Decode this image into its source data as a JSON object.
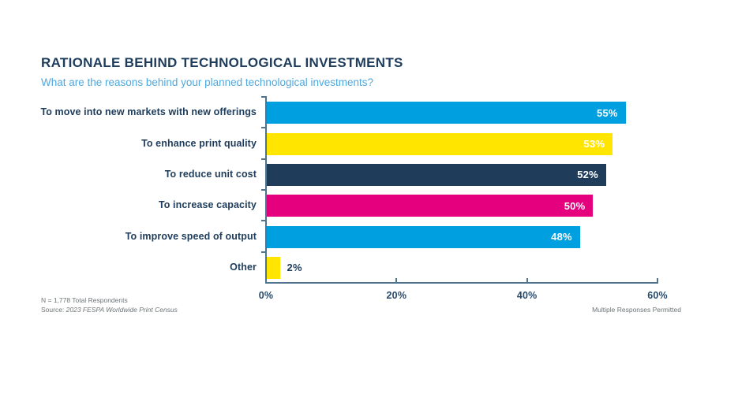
{
  "header": {
    "title": "RATIONALE BEHIND TECHNOLOGICAL INVESTMENTS",
    "subtitle": "What are the reasons behind your planned technological investments?"
  },
  "chart_data": {
    "type": "bar",
    "orientation": "horizontal",
    "title": "RATIONALE BEHIND TECHNOLOGICAL INVESTMENTS",
    "subtitle": "What are the reasons behind your planned technological investments?",
    "categories": [
      "To move into new markets with new offerings",
      "To enhance print quality",
      "To reduce unit cost",
      "To increase capacity",
      "To improve speed of output",
      "Other"
    ],
    "values": [
      55,
      53,
      52,
      50,
      48,
      2
    ],
    "value_labels": [
      "55%",
      "53%",
      "52%",
      "50%",
      "48%",
      "2%"
    ],
    "bar_colors": [
      "#009FE0",
      "#FFE500",
      "#1F3D5A",
      "#E5007D",
      "#009FE0",
      "#FFE500"
    ],
    "value_label_inside": [
      true,
      true,
      true,
      true,
      true,
      false
    ],
    "xlim": [
      0,
      60
    ],
    "x_ticks": [
      {
        "label": "0%",
        "value": 0
      },
      {
        "label": "20%",
        "value": 20
      },
      {
        "label": "40%",
        "value": 40
      },
      {
        "label": "60%",
        "value": 60
      }
    ],
    "grid": false,
    "legend": false,
    "xlabel": "",
    "ylabel": ""
  },
  "footnotes": {
    "respondents": "N = 1,778 Total Respondents",
    "source_prefix": "Source: ",
    "source": "2023 FESPA Worldwide Print Census",
    "note": "Multiple Responses Permitted"
  },
  "colors": {
    "title": "#1E3C5B",
    "subtitle": "#4FA8DE",
    "axis": "#50738E",
    "tick_label": "#27496B",
    "category_label": "#1E3C5B",
    "value_label_light": "#FFFFFF",
    "value_label_dark": "#1E3C5B",
    "footnote": "#6E7477",
    "cyan": "#009FE0",
    "yellow": "#FFE500",
    "navy": "#1F3D5A",
    "magenta": "#E5007D"
  }
}
